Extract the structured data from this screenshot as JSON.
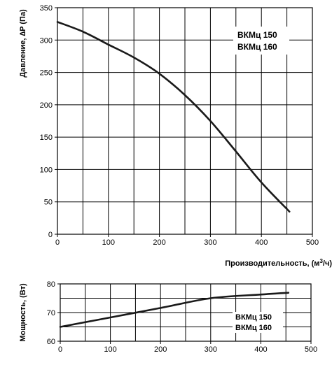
{
  "chart_data": [
    {
      "type": "line",
      "ylabel": "Давление, ∆P (Па)",
      "xlabel": "Производительность, (м³/ч)",
      "xlim": [
        0,
        500
      ],
      "ylim": [
        0,
        350
      ],
      "x_ticks": [
        "0",
        "100",
        "200",
        "300",
        "400",
        "500"
      ],
      "y_ticks": [
        "0",
        "50",
        "100",
        "150",
        "200",
        "250",
        "300",
        "350"
      ],
      "grid": true,
      "legend": [
        "ВКМц 150",
        "ВКМц 160"
      ],
      "legend_position": "top-right",
      "series": [
        {
          "x": [
            0,
            50,
            100,
            150,
            200,
            250,
            300,
            350,
            400,
            455
          ],
          "y": [
            328,
            313,
            293,
            273,
            248,
            215,
            175,
            128,
            80,
            35
          ]
        }
      ]
    },
    {
      "type": "line",
      "ylabel": "Мощность, (Вт)",
      "xlabel": "",
      "xlim": [
        0,
        500
      ],
      "ylim": [
        60,
        80
      ],
      "x_ticks": [
        "0",
        "100",
        "200",
        "300",
        "400",
        "500"
      ],
      "y_ticks": [
        "60",
        "70",
        "80"
      ],
      "grid": true,
      "legend": [
        "ВКМц 150",
        "ВКМц 160"
      ],
      "legend_position": "bottom-right",
      "series": [
        {
          "x": [
            0,
            100,
            200,
            300,
            400,
            455
          ],
          "y": [
            65,
            68.3,
            71.6,
            75,
            76.3,
            76.9
          ]
        }
      ]
    }
  ]
}
